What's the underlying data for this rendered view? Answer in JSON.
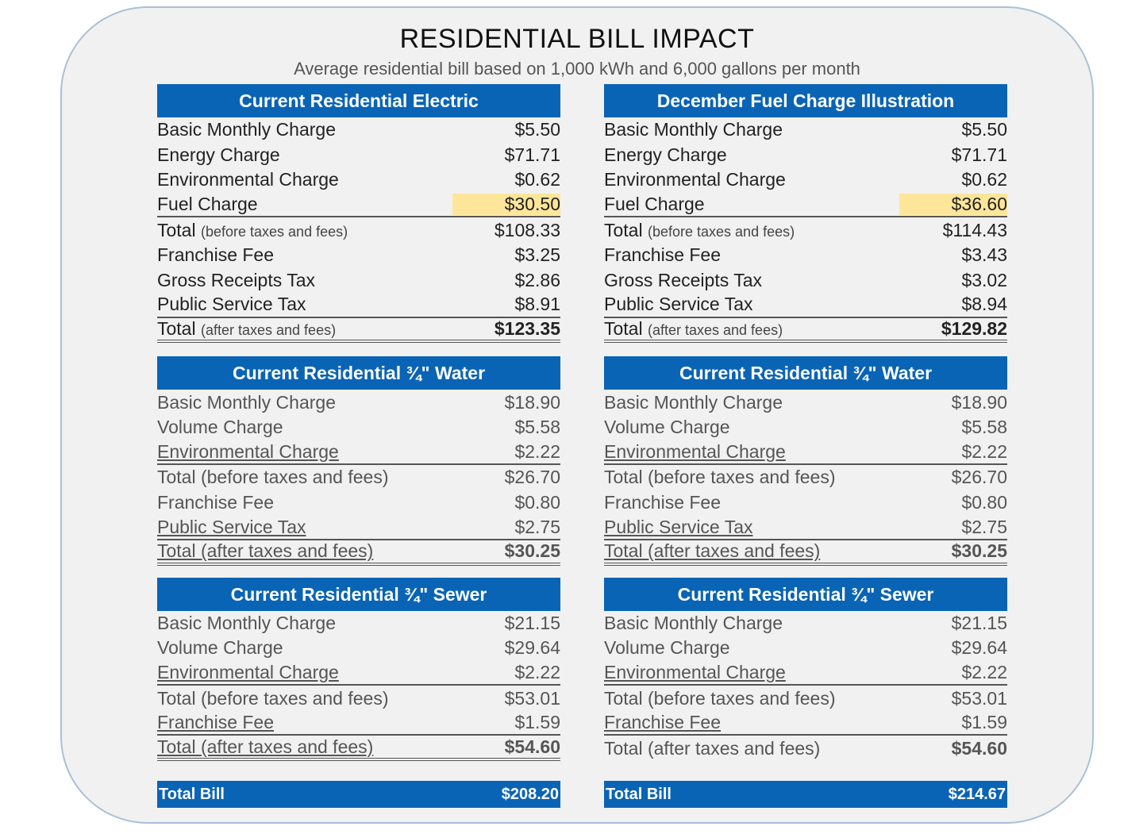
{
  "title": "RESIDENTIAL BILL IMPACT",
  "subtitle": "Average residential bill based on 1,000 kWh and 6,000 gallons per month",
  "left": {
    "electric": {
      "heading": "Current Residential Electric",
      "basic": {
        "label": "Basic Monthly Charge",
        "amount": "$5.50"
      },
      "energy": {
        "label": "Energy Charge",
        "amount": "$71.71"
      },
      "env": {
        "label": "Environmental Charge",
        "amount": "$0.62"
      },
      "fuel": {
        "label": "Fuel Charge",
        "amount": "$30.50"
      },
      "total_before": {
        "label": "Total",
        "note": "(before taxes and fees)",
        "amount": "$108.33"
      },
      "franchise": {
        "label": "Franchise Fee",
        "amount": "$3.25"
      },
      "gross": {
        "label": "Gross Receipts Tax",
        "amount": "$2.86"
      },
      "pst": {
        "label": "Public Service Tax",
        "amount": "$8.91"
      },
      "total_after": {
        "label": "Total",
        "note": "(after taxes and fees)",
        "amount": "$123.35"
      }
    },
    "water": {
      "heading": "Current Residential ¾\" Water",
      "basic": {
        "label": "Basic Monthly Charge",
        "amount": "$18.90"
      },
      "volume": {
        "label": "Volume Charge",
        "amount": "$5.58"
      },
      "env": {
        "label": "Environmental Charge",
        "amount": "$2.22"
      },
      "total_before": {
        "label": "Total (before taxes and fees)",
        "amount": "$26.70"
      },
      "franchise": {
        "label": "Franchise Fee",
        "amount": "$0.80"
      },
      "pst": {
        "label": "Public Service Tax",
        "amount": "$2.75"
      },
      "total_after": {
        "label": "Total (after taxes and fees)",
        "amount": "$30.25"
      }
    },
    "sewer": {
      "heading": "Current Residential ¾\" Sewer",
      "basic": {
        "label": "Basic Monthly Charge",
        "amount": "$21.15"
      },
      "volume": {
        "label": "Volume Charge",
        "amount": "$29.64"
      },
      "env": {
        "label": "Environmental Charge",
        "amount": "$2.22"
      },
      "total_before": {
        "label": "Total (before taxes and fees)",
        "amount": "$53.01"
      },
      "franchise": {
        "label": "Franchise Fee",
        "amount": "$1.59"
      },
      "total_after": {
        "label": "Total (after taxes and fees)",
        "amount": "$54.60"
      }
    },
    "total_bill": {
      "label": "Total Bill",
      "amount": "$208.20"
    }
  },
  "right": {
    "electric": {
      "heading": "December Fuel Charge Illustration",
      "basic": {
        "label": "Basic Monthly Charge",
        "amount": "$5.50"
      },
      "energy": {
        "label": "Energy Charge",
        "amount": "$71.71"
      },
      "env": {
        "label": "Environmental Charge",
        "amount": "$0.62"
      },
      "fuel": {
        "label": "Fuel Charge",
        "amount": "$36.60"
      },
      "total_before": {
        "label": "Total",
        "note": "(before taxes and fees)",
        "amount": "$114.43"
      },
      "franchise": {
        "label": "Franchise Fee",
        "amount": "$3.43"
      },
      "gross": {
        "label": "Gross Receipts Tax",
        "amount": "$3.02"
      },
      "pst": {
        "label": "Public Service Tax",
        "amount": "$8.94"
      },
      "total_after": {
        "label": "Total",
        "note": "(after taxes and fees)",
        "amount": "$129.82"
      }
    },
    "water": {
      "heading": "Current Residential ¾\" Water",
      "basic": {
        "label": "Basic Monthly Charge",
        "amount": "$18.90"
      },
      "volume": {
        "label": "Volume Charge",
        "amount": "$5.58"
      },
      "env": {
        "label": "Environmental Charge",
        "amount": "$2.22"
      },
      "total_before": {
        "label": "Total (before taxes and fees)",
        "amount": "$26.70"
      },
      "franchise": {
        "label": "Franchise Fee",
        "amount": "$0.80"
      },
      "pst": {
        "label": "Public Service Tax",
        "amount": "$2.75"
      },
      "total_after": {
        "label": "Total (after taxes and fees)",
        "amount": "$30.25"
      }
    },
    "sewer": {
      "heading": "Current Residential ¾\" Sewer",
      "basic": {
        "label": "Basic Monthly Charge",
        "amount": "$21.15"
      },
      "volume": {
        "label": "Volume Charge",
        "amount": "$29.64"
      },
      "env": {
        "label": "Environmental Charge",
        "amount": "$2.22"
      },
      "total_before": {
        "label": "Total (before taxes and fees)",
        "amount": "$53.01"
      },
      "franchise": {
        "label": "Franchise Fee",
        "amount": "$1.59"
      },
      "total_after": {
        "label": "Total (after taxes and fees)",
        "amount": "$54.60"
      }
    },
    "total_bill": {
      "label": "Total Bill",
      "amount": "$214.67"
    }
  },
  "colors": {
    "header_blue": "#0a64b5",
    "highlight_yellow": "#fde69a",
    "card_bg": "#f1f1f1",
    "card_border": "#aac0d8"
  }
}
